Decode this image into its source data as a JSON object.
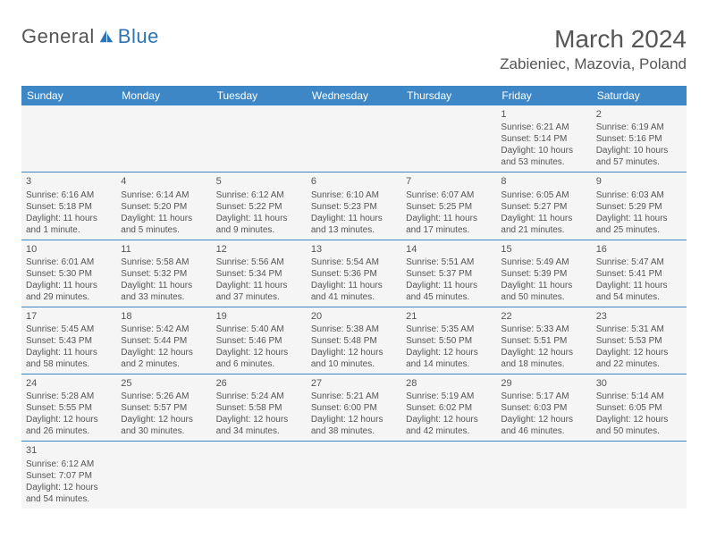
{
  "brand": {
    "text1": "General",
    "text2": "Blue",
    "text_color": "#555555",
    "accent_color": "#2e74b5"
  },
  "title": "March 2024",
  "location": "Zabieniec, Mazovia, Poland",
  "header_bg": "#3d87c7",
  "header_fg": "#ffffff",
  "cell_bg": "#f5f5f5",
  "row_border": "#3d87c7",
  "day_headers": [
    "Sunday",
    "Monday",
    "Tuesday",
    "Wednesday",
    "Thursday",
    "Friday",
    "Saturday"
  ],
  "weeks": [
    [
      null,
      null,
      null,
      null,
      null,
      {
        "n": "1",
        "sr": "Sunrise: 6:21 AM",
        "ss": "Sunset: 5:14 PM",
        "d1": "Daylight: 10 hours",
        "d2": "and 53 minutes."
      },
      {
        "n": "2",
        "sr": "Sunrise: 6:19 AM",
        "ss": "Sunset: 5:16 PM",
        "d1": "Daylight: 10 hours",
        "d2": "and 57 minutes."
      }
    ],
    [
      {
        "n": "3",
        "sr": "Sunrise: 6:16 AM",
        "ss": "Sunset: 5:18 PM",
        "d1": "Daylight: 11 hours",
        "d2": "and 1 minute."
      },
      {
        "n": "4",
        "sr": "Sunrise: 6:14 AM",
        "ss": "Sunset: 5:20 PM",
        "d1": "Daylight: 11 hours",
        "d2": "and 5 minutes."
      },
      {
        "n": "5",
        "sr": "Sunrise: 6:12 AM",
        "ss": "Sunset: 5:22 PM",
        "d1": "Daylight: 11 hours",
        "d2": "and 9 minutes."
      },
      {
        "n": "6",
        "sr": "Sunrise: 6:10 AM",
        "ss": "Sunset: 5:23 PM",
        "d1": "Daylight: 11 hours",
        "d2": "and 13 minutes."
      },
      {
        "n": "7",
        "sr": "Sunrise: 6:07 AM",
        "ss": "Sunset: 5:25 PM",
        "d1": "Daylight: 11 hours",
        "d2": "and 17 minutes."
      },
      {
        "n": "8",
        "sr": "Sunrise: 6:05 AM",
        "ss": "Sunset: 5:27 PM",
        "d1": "Daylight: 11 hours",
        "d2": "and 21 minutes."
      },
      {
        "n": "9",
        "sr": "Sunrise: 6:03 AM",
        "ss": "Sunset: 5:29 PM",
        "d1": "Daylight: 11 hours",
        "d2": "and 25 minutes."
      }
    ],
    [
      {
        "n": "10",
        "sr": "Sunrise: 6:01 AM",
        "ss": "Sunset: 5:30 PM",
        "d1": "Daylight: 11 hours",
        "d2": "and 29 minutes."
      },
      {
        "n": "11",
        "sr": "Sunrise: 5:58 AM",
        "ss": "Sunset: 5:32 PM",
        "d1": "Daylight: 11 hours",
        "d2": "and 33 minutes."
      },
      {
        "n": "12",
        "sr": "Sunrise: 5:56 AM",
        "ss": "Sunset: 5:34 PM",
        "d1": "Daylight: 11 hours",
        "d2": "and 37 minutes."
      },
      {
        "n": "13",
        "sr": "Sunrise: 5:54 AM",
        "ss": "Sunset: 5:36 PM",
        "d1": "Daylight: 11 hours",
        "d2": "and 41 minutes."
      },
      {
        "n": "14",
        "sr": "Sunrise: 5:51 AM",
        "ss": "Sunset: 5:37 PM",
        "d1": "Daylight: 11 hours",
        "d2": "and 45 minutes."
      },
      {
        "n": "15",
        "sr": "Sunrise: 5:49 AM",
        "ss": "Sunset: 5:39 PM",
        "d1": "Daylight: 11 hours",
        "d2": "and 50 minutes."
      },
      {
        "n": "16",
        "sr": "Sunrise: 5:47 AM",
        "ss": "Sunset: 5:41 PM",
        "d1": "Daylight: 11 hours",
        "d2": "and 54 minutes."
      }
    ],
    [
      {
        "n": "17",
        "sr": "Sunrise: 5:45 AM",
        "ss": "Sunset: 5:43 PM",
        "d1": "Daylight: 11 hours",
        "d2": "and 58 minutes."
      },
      {
        "n": "18",
        "sr": "Sunrise: 5:42 AM",
        "ss": "Sunset: 5:44 PM",
        "d1": "Daylight: 12 hours",
        "d2": "and 2 minutes."
      },
      {
        "n": "19",
        "sr": "Sunrise: 5:40 AM",
        "ss": "Sunset: 5:46 PM",
        "d1": "Daylight: 12 hours",
        "d2": "and 6 minutes."
      },
      {
        "n": "20",
        "sr": "Sunrise: 5:38 AM",
        "ss": "Sunset: 5:48 PM",
        "d1": "Daylight: 12 hours",
        "d2": "and 10 minutes."
      },
      {
        "n": "21",
        "sr": "Sunrise: 5:35 AM",
        "ss": "Sunset: 5:50 PM",
        "d1": "Daylight: 12 hours",
        "d2": "and 14 minutes."
      },
      {
        "n": "22",
        "sr": "Sunrise: 5:33 AM",
        "ss": "Sunset: 5:51 PM",
        "d1": "Daylight: 12 hours",
        "d2": "and 18 minutes."
      },
      {
        "n": "23",
        "sr": "Sunrise: 5:31 AM",
        "ss": "Sunset: 5:53 PM",
        "d1": "Daylight: 12 hours",
        "d2": "and 22 minutes."
      }
    ],
    [
      {
        "n": "24",
        "sr": "Sunrise: 5:28 AM",
        "ss": "Sunset: 5:55 PM",
        "d1": "Daylight: 12 hours",
        "d2": "and 26 minutes."
      },
      {
        "n": "25",
        "sr": "Sunrise: 5:26 AM",
        "ss": "Sunset: 5:57 PM",
        "d1": "Daylight: 12 hours",
        "d2": "and 30 minutes."
      },
      {
        "n": "26",
        "sr": "Sunrise: 5:24 AM",
        "ss": "Sunset: 5:58 PM",
        "d1": "Daylight: 12 hours",
        "d2": "and 34 minutes."
      },
      {
        "n": "27",
        "sr": "Sunrise: 5:21 AM",
        "ss": "Sunset: 6:00 PM",
        "d1": "Daylight: 12 hours",
        "d2": "and 38 minutes."
      },
      {
        "n": "28",
        "sr": "Sunrise: 5:19 AM",
        "ss": "Sunset: 6:02 PM",
        "d1": "Daylight: 12 hours",
        "d2": "and 42 minutes."
      },
      {
        "n": "29",
        "sr": "Sunrise: 5:17 AM",
        "ss": "Sunset: 6:03 PM",
        "d1": "Daylight: 12 hours",
        "d2": "and 46 minutes."
      },
      {
        "n": "30",
        "sr": "Sunrise: 5:14 AM",
        "ss": "Sunset: 6:05 PM",
        "d1": "Daylight: 12 hours",
        "d2": "and 50 minutes."
      }
    ],
    [
      {
        "n": "31",
        "sr": "Sunrise: 6:12 AM",
        "ss": "Sunset: 7:07 PM",
        "d1": "Daylight: 12 hours",
        "d2": "and 54 minutes."
      },
      null,
      null,
      null,
      null,
      null,
      null
    ]
  ]
}
